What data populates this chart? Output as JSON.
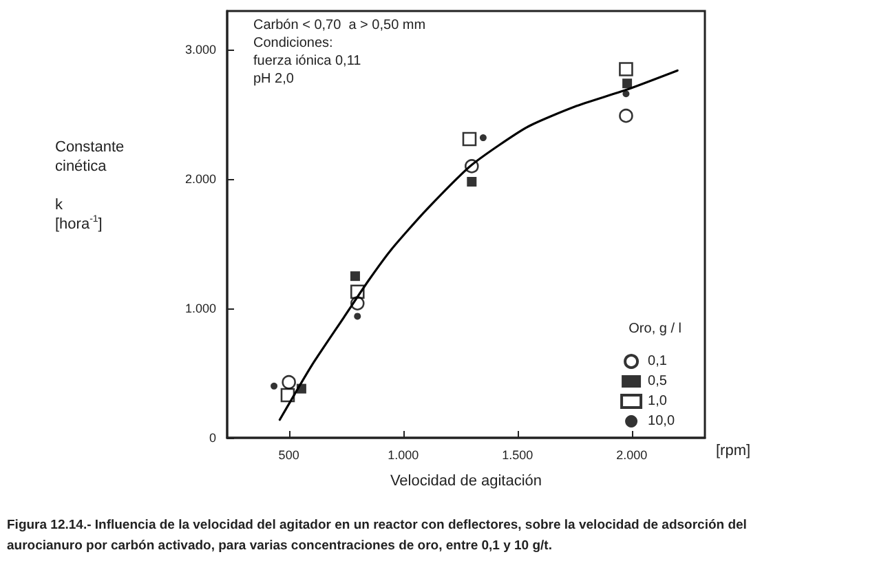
{
  "chart_data": {
    "type": "scatter",
    "xlabel": "Velocidad de agitación",
    "ylabel": "Constante\ncinética\n\nk\n[hora$^{-1}$]",
    "legend_title": "Oro, g / l",
    "annotations": [
      "Carbón < 0,70  a > 0,50 mm\nCondiciones:\nfuerza iónica 0,11\npH 2,0",
      "[rpm]",
      "Figura 12.14.- Influencia de la velocidad del agitador en un reactor con deflectores, sobre la velocidad de adsorción del\naurocianuro por carbón activado, para varias concentraciones de oro, entre 0,1 y 10 g/t."
    ],
    "xlim": [
      230,
      2320
    ],
    "ylim": [
      0,
      3300
    ],
    "xticks": [
      500,
      {
        "value": 1000,
        "label": "1.000"
      },
      {
        "value": 1500,
        "label": "1.500"
      },
      {
        "value": 2000,
        "label": "2.000"
      }
    ],
    "yticks": [
      0,
      {
        "value": 1000,
        "label": "1.000"
      },
      {
        "value": 2000,
        "label": "2.000"
      },
      {
        "value": 3000,
        "label": "3.000"
      }
    ],
    "legend": "bottom right",
    "grid": false,
    "series": [
      {
        "name": "0,1",
        "color": "#000000",
        "marker": "circle",
        "x": [
          500,
          800,
          1300,
          1975
        ],
        "values": [
          430,
          1040,
          2100,
          2490
        ]
      },
      {
        "name": "0,5",
        "color": "#000000",
        "marker": "square",
        "x": [
          555,
          790,
          1300,
          1980
        ],
        "values": [
          380,
          1250,
          1980,
          2740
        ]
      },
      {
        "name": "1,0",
        "color": "#000000",
        "marker": "square",
        "x": [
          495,
          800,
          1290,
          1975
        ],
        "values": [
          330,
          1130,
          2310,
          2850
        ]
      },
      {
        "name": "10,0",
        "color": "#000000",
        "marker": "circle",
        "x": [
          435,
          800,
          1350,
          1975
        ],
        "values": [
          400,
          940,
          2320,
          2660
        ]
      },
      {
        "type": "line",
        "color": "#000000",
        "marker": "none",
        "line_style": "solid",
        "x": [
          460,
          600,
          740,
          850,
          950,
          1100,
          1300,
          1540,
          1750,
          1975,
          2200
        ],
        "values": [
          140,
          560,
          930,
          1220,
          1460,
          1760,
          2110,
          2400,
          2560,
          2690,
          2840
        ]
      }
    ]
  }
}
